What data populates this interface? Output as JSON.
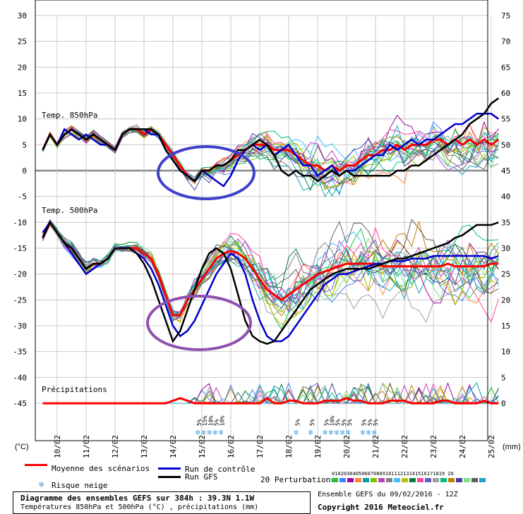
{
  "chart_data": {
    "type": "line",
    "title": "Diagramme des ensembles GEFS sur 384h : 39.3N 1.1W",
    "subtitle": "Températures 850hPa et 500hPa (°C) , précipitations (mm)",
    "left_axis": {
      "unit": "(°C)",
      "ticks": [
        30,
        25,
        20,
        15,
        10,
        5,
        0,
        -5,
        -10,
        -15,
        -20,
        -25,
        -30,
        -35,
        -40,
        -45
      ],
      "range": [
        -45,
        30
      ]
    },
    "right_axis": {
      "unit": "(mm)",
      "ticks": [
        75,
        70,
        65,
        60,
        55,
        50,
        45,
        40,
        35,
        30,
        25,
        20,
        15,
        10,
        5,
        0
      ]
    },
    "x_ticks": [
      "10/02",
      "11/02",
      "12/02",
      "13/02",
      "14/02",
      "15/02",
      "16/02",
      "17/02",
      "18/02",
      "19/02",
      "20/02",
      "21/02",
      "22/02",
      "23/02",
      "24/02",
      "25/02"
    ],
    "panel_labels": [
      "Temp. 850hPa",
      "Temp. 500hPa",
      "Précipitations"
    ],
    "x_days": [
      9.5,
      9.75,
      10,
      10.25,
      10.5,
      10.75,
      11,
      11.25,
      11.5,
      11.75,
      12,
      12.25,
      12.5,
      12.75,
      13,
      13.25,
      13.5,
      13.75,
      14,
      14.25,
      14.5,
      14.75,
      15,
      15.25,
      15.5,
      15.75,
      16,
      16.25,
      16.5,
      16.75,
      17,
      17.25,
      17.5,
      17.75,
      18,
      18.25,
      18.5,
      18.75,
      19,
      19.25,
      19.5,
      19.75,
      20,
      20.25,
      20.5,
      20.75,
      21,
      21.25,
      21.5,
      21.75,
      22,
      22.25,
      22.5,
      22.75,
      23,
      23.25,
      23.5,
      23.75,
      24,
      24.25,
      24.5,
      24.75,
      25,
      25.25
    ],
    "series": [
      {
        "name": "Moyenne des scénarios",
        "level": "850hPa",
        "color": "#ff0000",
        "values": [
          4,
          7,
          5,
          7,
          8,
          7,
          6,
          7,
          6,
          5,
          4,
          7,
          8,
          8,
          7,
          8,
          7,
          5,
          3,
          1,
          -1,
          -2,
          0,
          0,
          1,
          1,
          2,
          3,
          4,
          5,
          5,
          5,
          4,
          4,
          4,
          3,
          2,
          1,
          1,
          0,
          1,
          0,
          1,
          1,
          2,
          3,
          3,
          4,
          4,
          5,
          4,
          5,
          5,
          5,
          6,
          6,
          5,
          6,
          5,
          6,
          5,
          6,
          5,
          6
        ]
      },
      {
        "name": "Run de contrôle",
        "level": "850hPa",
        "color": "#0000cc",
        "values": [
          4,
          7,
          5,
          8,
          7,
          6,
          7,
          6,
          5,
          5,
          4,
          7,
          8,
          8,
          8,
          7,
          7,
          4,
          2,
          0,
          -1,
          -2,
          0,
          -1,
          -2,
          -3,
          -1,
          2,
          4,
          5,
          4,
          5,
          3,
          4,
          5,
          3,
          1,
          1,
          -1,
          0,
          1,
          -1,
          0,
          0,
          1,
          2,
          3,
          3,
          5,
          4,
          5,
          6,
          5,
          6,
          6,
          7,
          8,
          9,
          9,
          10,
          11,
          11,
          11,
          10
        ]
      },
      {
        "name": "Run GFS",
        "level": "850hPa",
        "color": "#000000",
        "values": [
          4,
          7,
          5,
          7,
          8,
          7,
          6,
          7,
          6,
          5,
          4,
          7,
          8,
          8,
          8,
          8,
          7,
          4,
          2,
          0,
          -1,
          -2,
          0,
          0,
          1,
          1,
          2,
          4,
          4,
          5,
          6,
          5,
          3,
          0,
          -1,
          0,
          -1,
          -1,
          -2,
          -1,
          0,
          -1,
          0,
          -1,
          -1,
          -1,
          -1,
          -1,
          -1,
          0,
          0,
          1,
          1,
          2,
          3,
          4,
          5,
          6,
          7,
          9,
          10,
          11,
          13,
          14
        ]
      },
      {
        "name": "Moyenne des scénarios",
        "level": "500hPa",
        "color": "#ff0000",
        "values": [
          -13,
          -10,
          -12,
          -14,
          -15,
          -17,
          -19,
          -18,
          -18,
          -17,
          -15,
          -15,
          -15,
          -15,
          -16,
          -17,
          -20,
          -24,
          -28,
          -28,
          -25,
          -23,
          -21,
          -19,
          -17,
          -16,
          -15.5,
          -16,
          -17,
          -19,
          -21,
          -23,
          -24,
          -25,
          -24,
          -23,
          -22,
          -21,
          -20,
          -19.5,
          -19,
          -18.5,
          -18,
          -18,
          -18,
          -18,
          -18,
          -18.5,
          -18.5,
          -18.5,
          -18.5,
          -18.5,
          -18.5,
          -18.5,
          -18.5,
          -18.5,
          -18,
          -18.5,
          -18.5,
          -18.5,
          -18.5,
          -18.5,
          -18,
          -18
        ]
      },
      {
        "name": "Run de contrôle",
        "level": "500hPa",
        "color": "#0000cc",
        "values": [
          -12,
          -10,
          -12,
          -14,
          -16,
          -18,
          -20,
          -19,
          -18,
          -17,
          -15,
          -15,
          -15,
          -16,
          -17,
          -19,
          -22,
          -26,
          -30,
          -32,
          -31,
          -29,
          -26,
          -23,
          -20,
          -18,
          -16,
          -17,
          -20,
          -25,
          -29,
          -32,
          -33,
          -33,
          -32,
          -30,
          -28,
          -26,
          -24,
          -22,
          -21,
          -20,
          -20,
          -19.5,
          -19,
          -18.5,
          -18,
          -18,
          -17.5,
          -17.5,
          -17.5,
          -17,
          -17,
          -17,
          -16.5,
          -16.5,
          -16.5,
          -16.5,
          -16.5,
          -16.5,
          -16.5,
          -16.5,
          -17,
          -16.5
        ]
      },
      {
        "name": "Run GFS",
        "level": "500hPa",
        "color": "#000000",
        "values": [
          -13,
          -10,
          -12,
          -14,
          -15,
          -17,
          -19,
          -18,
          -18,
          -17,
          -15,
          -15,
          -15,
          -16,
          -18,
          -21,
          -25,
          -29,
          -33,
          -31,
          -27,
          -23,
          -19,
          -16,
          -15,
          -16,
          -19,
          -24,
          -29,
          -32,
          -33,
          -33.5,
          -33,
          -31,
          -29,
          -27,
          -25,
          -23,
          -22,
          -21,
          -20,
          -19.5,
          -19,
          -19,
          -19,
          -19,
          -18.5,
          -18,
          -17.5,
          -17,
          -17,
          -16.5,
          -16,
          -15.5,
          -15,
          -14.5,
          -14,
          -13,
          -12.5,
          -11.5,
          -10.5,
          -10.5,
          -10.5,
          -10
        ]
      }
    ],
    "precipitation_mean": {
      "name": "Moyenne des scénarios",
      "unit": "mm",
      "values": [
        0,
        0,
        0,
        0,
        0,
        0,
        0,
        0,
        0,
        0,
        0,
        0,
        0,
        0,
        0,
        0,
        0,
        0,
        0.5,
        1,
        0.5,
        0,
        0,
        0,
        0,
        0,
        0,
        0,
        0,
        0,
        0,
        1,
        0,
        0,
        0.5,
        0.5,
        0,
        0,
        0,
        0.5,
        0.5,
        0.5,
        1,
        0.5,
        0.5,
        0,
        0,
        0,
        0.5,
        0.5,
        0.5,
        0,
        0,
        0,
        0,
        0.5,
        0.5,
        0,
        0,
        0,
        0,
        0.5,
        0,
        0
      ]
    },
    "snow_risk": [
      {
        "day": 14.9,
        "pct": "5%"
      },
      {
        "day": 15.1,
        "pct": "15%"
      },
      {
        "day": 15.3,
        "pct": "10%"
      },
      {
        "day": 15.5,
        "pct": "5%"
      },
      {
        "day": 15.7,
        "pct": "10%"
      },
      {
        "day": 18.3,
        "pct": "5%"
      },
      {
        "day": 18.8,
        "pct": "5%"
      },
      {
        "day": 19.3,
        "pct": "5%"
      },
      {
        "day": 19.5,
        "pct": "10%"
      },
      {
        "day": 19.7,
        "pct": "5%"
      },
      {
        "day": 19.9,
        "pct": "5%"
      },
      {
        "day": 20.1,
        "pct": "5%"
      },
      {
        "day": 20.6,
        "pct": "5%"
      },
      {
        "day": 20.8,
        "pct": "5%"
      },
      {
        "day": 21.0,
        "pct": "5%"
      }
    ],
    "grid": true
  },
  "legend": {
    "mean": "Moyenne des scénarios",
    "control": "Run de contrôle",
    "gfs": "Run GFS",
    "snow": "Risque neige",
    "perturbations": "20 Perturbations",
    "pert_numbers": "01020304050607080910111213141516171819 20",
    "colors": {
      "mean": "#ff0000",
      "control": "#0000cc",
      "gfs": "#000000",
      "circle1": "#4040cc",
      "circle2": "#9050b0"
    }
  },
  "footer": {
    "title": "Diagramme des ensembles GEFS sur 384h : 39.3N 1.1W",
    "subtitle": "Températures 850hPa et 500hPa (°C) , précipitations (mm)",
    "run_info": "Ensemble GEFS du 09/02/2016 - 12Z",
    "copyright": "Copyright 2016 Meteociel.fr"
  }
}
